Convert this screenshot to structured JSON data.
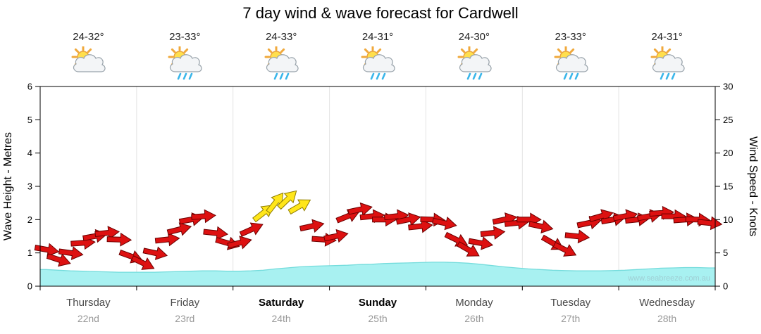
{
  "title": "7 day wind & wave forecast for Cardwell",
  "watermark": "www.seabreeze.com.au",
  "axes": {
    "left_label": "Wave Height - Metres",
    "right_label": "Wind Speed - Knots"
  },
  "colors": {
    "arrow": "#dd1111",
    "arrow_outline": "#6b0000",
    "arrow_strong": "#ffe61a",
    "arrow_strong_outline": "#8f7d00",
    "wave_fill": "#a8f1f1",
    "wave_edge": "#74dcdc",
    "grid": "#e3e3e3",
    "watermark": "#9fcfd4"
  },
  "days": [
    {
      "name": "Thursday",
      "date": "22nd",
      "temp": "24-32°",
      "icon": "partly-cloudy",
      "emphasis": false
    },
    {
      "name": "Friday",
      "date": "23rd",
      "temp": "23-33°",
      "icon": "partly-cloudy-showers",
      "emphasis": false
    },
    {
      "name": "Saturday",
      "date": "24th",
      "temp": "24-33°",
      "icon": "partly-cloudy-showers",
      "emphasis": true
    },
    {
      "name": "Sunday",
      "date": "25th",
      "temp": "24-31°",
      "icon": "partly-cloudy-showers",
      "emphasis": true
    },
    {
      "name": "Monday",
      "date": "26th",
      "temp": "24-30°",
      "icon": "partly-cloudy-showers",
      "emphasis": false
    },
    {
      "name": "Tuesday",
      "date": "27th",
      "temp": "23-33°",
      "icon": "partly-cloudy-showers",
      "emphasis": false
    },
    {
      "name": "Wednesday",
      "date": "28th",
      "temp": "24-31°",
      "icon": "partly-cloudy-showers",
      "emphasis": false
    }
  ],
  "chart_data": {
    "type": "area",
    "title": "7 day wind & wave forecast for Cardwell",
    "categories_days": [
      "Thursday 22nd",
      "Friday 23rd",
      "Saturday 24th",
      "Sunday 25th",
      "Monday 26th",
      "Tuesday 27th",
      "Wednesday 28th"
    ],
    "points_per_day": 8,
    "x_unit": "3-hourly steps across 7 days",
    "ylabel_left": "Wave Height - Metres",
    "ylabel_right": "Wind Speed - Knots",
    "ylim_wave": [
      0,
      6
    ],
    "ylim_wind": [
      0,
      30
    ],
    "wave_ticks": [
      0,
      1,
      2,
      3,
      4,
      5,
      6
    ],
    "wind_ticks": [
      0,
      5,
      10,
      15,
      20,
      25,
      30
    ],
    "grid": "day-boundaries",
    "legend": "none",
    "series": [
      {
        "name": "Wave Height",
        "unit": "m",
        "type": "area",
        "axis": "left",
        "values": [
          0.5,
          0.48,
          0.46,
          0.45,
          0.44,
          0.43,
          0.42,
          0.42,
          0.42,
          0.42,
          0.43,
          0.44,
          0.45,
          0.46,
          0.46,
          0.45,
          0.45,
          0.46,
          0.48,
          0.52,
          0.55,
          0.58,
          0.6,
          0.61,
          0.62,
          0.63,
          0.65,
          0.66,
          0.68,
          0.69,
          0.7,
          0.71,
          0.72,
          0.72,
          0.71,
          0.69,
          0.66,
          0.62,
          0.58,
          0.55,
          0.52,
          0.5,
          0.48,
          0.47,
          0.46,
          0.46,
          0.46,
          0.47,
          0.48,
          0.5,
          0.52,
          0.54,
          0.55,
          0.56,
          0.56,
          0.55
        ]
      },
      {
        "name": "Wind Speed",
        "unit": "knots",
        "type": "wind-arrows",
        "axis": "right",
        "values": [
          5.5,
          4.0,
          5.0,
          6.5,
          7.5,
          8.0,
          7.0,
          4.5,
          3.5,
          5.0,
          7.0,
          8.5,
          10.0,
          10.5,
          8.0,
          6.5,
          6.5,
          8.5,
          11.0,
          12.5,
          13.0,
          12.0,
          9.0,
          7.0,
          7.5,
          10.5,
          11.5,
          10.5,
          10.0,
          10.5,
          10.0,
          9.0,
          10.0,
          9.5,
          7.0,
          5.5,
          6.5,
          8.0,
          10.0,
          9.5,
          10.0,
          9.0,
          6.5,
          5.5,
          7.5,
          9.5,
          10.5,
          10.0,
          10.5,
          10.0,
          10.5,
          11.0,
          10.5,
          10.0,
          10.0,
          9.5
        ],
        "directions_deg": [
          10,
          18,
          8,
          -4,
          -10,
          -6,
          2,
          20,
          26,
          12,
          -6,
          -14,
          -10,
          -4,
          6,
          16,
          -14,
          -24,
          -38,
          -52,
          -44,
          -30,
          -12,
          4,
          -12,
          -22,
          -12,
          -6,
          0,
          -6,
          -12,
          -6,
          2,
          12,
          26,
          30,
          10,
          -6,
          -12,
          -6,
          0,
          12,
          30,
          26,
          6,
          -12,
          -16,
          -10,
          -10,
          -6,
          -10,
          -4,
          0,
          -4,
          2,
          6
        ],
        "strong_gust_indices": [
          18,
          19,
          20,
          21
        ]
      }
    ]
  }
}
